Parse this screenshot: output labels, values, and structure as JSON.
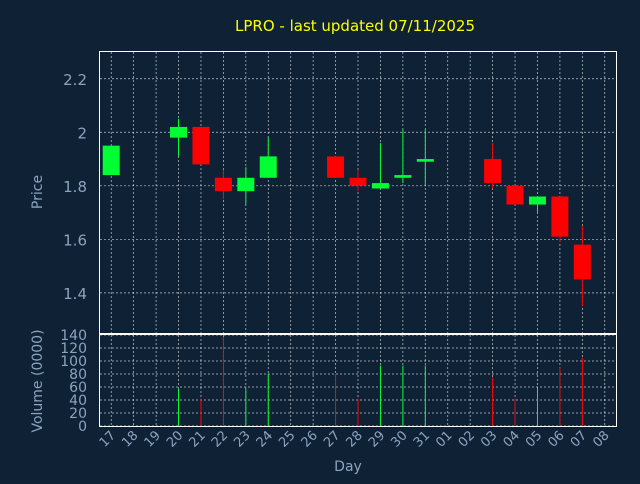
{
  "colors": {
    "background": "#0f2235",
    "title": "#ffff00",
    "axis_text": "#8ca3c0",
    "grid": "#ffffff",
    "up": "#00ff33",
    "down": "#ff0000"
  },
  "chart_data": {
    "type": "candlestick",
    "title": "LPRO - last updated 07/11/2025",
    "xlabel": "Day",
    "ylabel": "Price",
    "volume_label": "Volume (0000)",
    "days": [
      "17",
      "18",
      "19",
      "20",
      "21",
      "22",
      "23",
      "24",
      "25",
      "26",
      "27",
      "28",
      "29",
      "30",
      "31",
      "01",
      "02",
      "03",
      "04",
      "05",
      "06",
      "07",
      "08"
    ],
    "price_ylim": [
      1.25,
      2.3
    ],
    "price_yticks": [
      "1.4",
      "1.6",
      "1.8",
      "2",
      "2.2"
    ],
    "volume_ylim": [
      0,
      140
    ],
    "volume_yticks": [
      "0",
      "20",
      "40",
      "60",
      "80",
      "100",
      "120",
      "140"
    ],
    "grid": true,
    "candles": [
      {
        "day": "17",
        "open": 1.84,
        "close": 1.95,
        "high": 1.95,
        "low": 1.84,
        "volume": 0
      },
      {
        "day": "20",
        "open": 1.98,
        "close": 2.02,
        "high": 2.05,
        "low": 1.91,
        "volume": 57
      },
      {
        "day": "21",
        "open": 2.02,
        "close": 1.88,
        "high": 2.02,
        "low": 1.88,
        "volume": 42
      },
      {
        "day": "22",
        "open": 1.83,
        "close": 1.78,
        "high": 1.86,
        "low": 1.75,
        "volume": 137
      },
      {
        "day": "23",
        "open": 1.78,
        "close": 1.83,
        "high": 1.87,
        "low": 1.73,
        "volume": 57
      },
      {
        "day": "24",
        "open": 1.83,
        "close": 1.91,
        "high": 1.98,
        "low": 1.83,
        "volume": 80
      },
      {
        "day": "27",
        "open": 1.91,
        "close": 1.83,
        "high": 1.91,
        "low": 1.83,
        "volume": 80
      },
      {
        "day": "28",
        "open": 1.83,
        "close": 1.8,
        "high": 1.86,
        "low": 1.78,
        "volume": 42
      },
      {
        "day": "29",
        "open": 1.79,
        "close": 1.81,
        "high": 1.96,
        "low": 1.79,
        "volume": 93
      },
      {
        "day": "30",
        "open": 1.83,
        "close": 1.84,
        "high": 2.01,
        "low": 1.81,
        "volume": 93
      },
      {
        "day": "31",
        "open": 1.89,
        "close": 1.9,
        "high": 2.01,
        "low": 1.8,
        "volume": 93
      },
      {
        "day": "03",
        "open": 1.9,
        "close": 1.81,
        "high": 1.96,
        "low": 1.79,
        "volume": 75
      },
      {
        "day": "04",
        "open": 1.8,
        "close": 1.73,
        "high": 1.8,
        "low": 1.73,
        "volume": 42
      },
      {
        "day": "05",
        "open": 1.73,
        "close": 1.76,
        "high": 1.76,
        "low": 1.7,
        "volume": 57
      },
      {
        "day": "06",
        "open": 1.76,
        "close": 1.61,
        "high": 1.76,
        "low": 1.59,
        "volume": 90
      },
      {
        "day": "07",
        "open": 1.58,
        "close": 1.45,
        "high": 1.65,
        "low": 1.35,
        "volume": 105
      }
    ]
  }
}
